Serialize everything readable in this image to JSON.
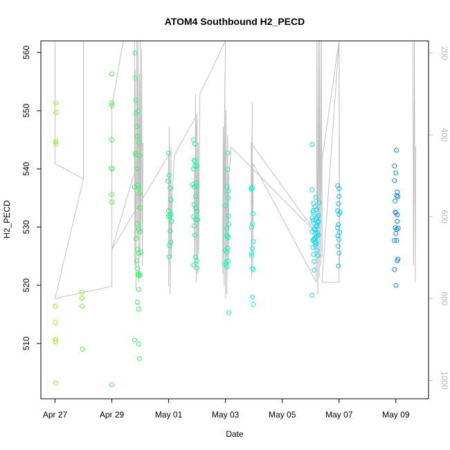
{
  "chart_data": {
    "type": "scatter",
    "title": "ATOM4 Southbound H2_PECD",
    "xlabel": "Date",
    "ylabel": "H2_PECD",
    "x_unit": "days since Apr 27 00:00",
    "xlim": [
      -0.5,
      13.15
    ],
    "ylim": [
      500.5,
      562
    ],
    "yticks": [
      510,
      520,
      530,
      540,
      550,
      560
    ],
    "xticks": [
      {
        "label": "Apr 27",
        "value": 0
      },
      {
        "label": "Apr 29",
        "value": 2
      },
      {
        "label": "May 01",
        "value": 4
      },
      {
        "label": "May 03",
        "value": 6
      },
      {
        "label": "May 05",
        "value": 8
      },
      {
        "label": "May 07",
        "value": 10
      },
      {
        "label": "May 09",
        "value": 12
      }
    ],
    "right_axis": {
      "color": "#b8b8b8",
      "ylim": [
        1045,
        170
      ],
      "ticks": [
        200,
        400,
        600,
        800,
        1000
      ]
    },
    "secondary_line": {
      "color": "#c0c0c0",
      "description": "grey trace on right axis scale",
      "points": [
        [
          0.0,
          130
        ],
        [
          0.0,
          470
        ],
        [
          1.0,
          508
        ],
        [
          1.0,
          130
        ],
        [
          1.0,
          508
        ],
        [
          0.0,
          800
        ],
        [
          2.0,
          770
        ],
        [
          2.0,
          330
        ],
        [
          2.4,
          130
        ],
        [
          2.8,
          130
        ],
        [
          2.8,
          340
        ],
        [
          2.81,
          720
        ],
        [
          2.82,
          240
        ],
        [
          2.85,
          780
        ],
        [
          2.88,
          150
        ],
        [
          2.9,
          650
        ],
        [
          2.92,
          130
        ],
        [
          2.95,
          760
        ],
        [
          2.97,
          250
        ],
        [
          2.99,
          700
        ],
        [
          3.0,
          130
        ],
        [
          3.02,
          640
        ],
        [
          3.05,
          190
        ],
        [
          3.07,
          720
        ],
        [
          3.1,
          420
        ],
        [
          2.0,
          680
        ],
        [
          4.0,
          450
        ],
        [
          4.0,
          770
        ],
        [
          4.02,
          380
        ],
        [
          4.05,
          790
        ],
        [
          4.08,
          430
        ],
        [
          4.1,
          700
        ],
        [
          4.12,
          560
        ],
        [
          4.2,
          450
        ],
        [
          5.0,
          350
        ],
        [
          4.9,
          520
        ],
        [
          4.92,
          720
        ],
        [
          4.95,
          300
        ],
        [
          4.97,
          760
        ],
        [
          5.0,
          360
        ],
        [
          5.02,
          740
        ],
        [
          5.04,
          420
        ],
        [
          5.06,
          690
        ],
        [
          5.1,
          300
        ],
        [
          6.0,
          130
        ],
        [
          5.9,
          740
        ],
        [
          5.92,
          380
        ],
        [
          5.95,
          770
        ],
        [
          5.98,
          250
        ],
        [
          6.0,
          800
        ],
        [
          6.02,
          340
        ],
        [
          6.05,
          790
        ],
        [
          6.08,
          400
        ],
        [
          6.1,
          730
        ],
        [
          6.12,
          500
        ],
        [
          6.2,
          430
        ],
        [
          9.2,
          640
        ],
        [
          6.9,
          420
        ],
        [
          6.92,
          750
        ],
        [
          6.94,
          320
        ],
        [
          6.96,
          720
        ],
        [
          6.98,
          470
        ],
        [
          9.2,
          760
        ],
        [
          9.22,
          130
        ],
        [
          9.25,
          790
        ],
        [
          9.28,
          130
        ],
        [
          9.3,
          750
        ],
        [
          9.32,
          130
        ],
        [
          9.35,
          720
        ],
        [
          9.38,
          130
        ],
        [
          9.4,
          700
        ],
        [
          9.4,
          460
        ],
        [
          10.0,
          130
        ],
        [
          9.4,
          760
        ],
        [
          10.0,
          760
        ],
        [
          10.0,
          130
        ],
        [
          10.02,
          720
        ],
        [
          10.0,
          130
        ],
        [
          11.6,
          130
        ],
        [
          12.6,
          130
        ],
        [
          12.62,
          720
        ],
        [
          12.65,
          130
        ],
        [
          12.68,
          760
        ],
        [
          12.7,
          430
        ]
      ]
    },
    "color_scale": [
      "#80ff00",
      "#00ff80",
      "#00ffff",
      "#0080ff"
    ],
    "points": [
      [
        0.03,
        551.3
      ],
      [
        0.03,
        549.7
      ],
      [
        0.03,
        544.7
      ],
      [
        0.03,
        544.3
      ],
      [
        0.02,
        516.4
      ],
      [
        0.02,
        513.6
      ],
      [
        0.02,
        510.7
      ],
      [
        0.02,
        510.3
      ],
      [
        0.02,
        503.2
      ],
      [
        0.95,
        518.8
      ],
      [
        0.95,
        517.8
      ],
      [
        0.95,
        516.4
      ],
      [
        0.97,
        509.0
      ],
      [
        2.0,
        556.3
      ],
      [
        2.0,
        551.3
      ],
      [
        2.0,
        550.9
      ],
      [
        2.0,
        545.0
      ],
      [
        2.0,
        540.1
      ],
      [
        2.0,
        540.0
      ],
      [
        2.0,
        535.6
      ],
      [
        2.0,
        534.3
      ],
      [
        2.0,
        502.9
      ],
      [
        2.82,
        559.9
      ],
      [
        2.84,
        555.6
      ],
      [
        2.85,
        551.8
      ],
      [
        2.86,
        549.5
      ],
      [
        2.88,
        547.3
      ],
      [
        2.9,
        545.6
      ],
      [
        2.82,
        542.7
      ],
      [
        2.85,
        542.4
      ],
      [
        2.88,
        540.0
      ],
      [
        2.8,
        536.9
      ],
      [
        2.9,
        537.2
      ],
      [
        2.95,
        536.7
      ],
      [
        2.97,
        535.8
      ],
      [
        3.0,
        533.3
      ],
      [
        2.9,
        530.6
      ],
      [
        2.95,
        529.6
      ],
      [
        3.0,
        529.2
      ],
      [
        2.85,
        528.0
      ],
      [
        2.9,
        526.2
      ],
      [
        2.95,
        525.5
      ],
      [
        2.88,
        524.2
      ],
      [
        2.9,
        522.9
      ],
      [
        2.92,
        521.8
      ],
      [
        2.94,
        522.0
      ],
      [
        2.96,
        521.6
      ],
      [
        3.0,
        521.8
      ],
      [
        2.95,
        519.3
      ],
      [
        2.9,
        517.1
      ],
      [
        2.95,
        515.9
      ],
      [
        2.8,
        510.6
      ],
      [
        2.95,
        509.9
      ],
      [
        2.97,
        507.4
      ],
      [
        2.92,
        549.9
      ],
      [
        2.95,
        544.6
      ],
      [
        2.98,
        542.3
      ],
      [
        3.02,
        525.6
      ],
      [
        4.0,
        542.7
      ],
      [
        4.02,
        538.9
      ],
      [
        3.98,
        537.9
      ],
      [
        4.05,
        536.7
      ],
      [
        4.08,
        534.7
      ],
      [
        4.0,
        532.8
      ],
      [
        4.05,
        532.0
      ],
      [
        4.1,
        531.0
      ],
      [
        4.05,
        529.3
      ],
      [
        4.07,
        527.4
      ],
      [
        4.03,
        526.8
      ],
      [
        4.02,
        524.9
      ],
      [
        4.0,
        531.8
      ],
      [
        4.08,
        532.3
      ],
      [
        4.88,
        545.0
      ],
      [
        4.92,
        544.3
      ],
      [
        4.9,
        541.5
      ],
      [
        4.93,
        540.5
      ],
      [
        4.88,
        540.0
      ],
      [
        5.0,
        540.5
      ],
      [
        4.85,
        537.3
      ],
      [
        4.9,
        536.9
      ],
      [
        5.0,
        537.0
      ],
      [
        4.95,
        535.3
      ],
      [
        4.9,
        533.9
      ],
      [
        4.95,
        533.3
      ],
      [
        5.0,
        532.7
      ],
      [
        4.88,
        531.8
      ],
      [
        4.95,
        531.3
      ],
      [
        5.02,
        531.3
      ],
      [
        4.9,
        530.2
      ],
      [
        4.92,
        528.6
      ],
      [
        4.95,
        524.9
      ],
      [
        5.0,
        524.2
      ],
      [
        4.88,
        523.5
      ],
      [
        5.0,
        522.9
      ],
      [
        4.92,
        541.3
      ],
      [
        4.98,
        537.6
      ],
      [
        6.08,
        542.7
      ],
      [
        6.08,
        539.9
      ],
      [
        6.05,
        537.0
      ],
      [
        6.1,
        536.2
      ],
      [
        6.1,
        535.0
      ],
      [
        6.0,
        533.7
      ],
      [
        6.1,
        531.9
      ],
      [
        6.05,
        529.8
      ],
      [
        6.05,
        528.6
      ],
      [
        6.1,
        528.2
      ],
      [
        6.0,
        526.0
      ],
      [
        6.05,
        525.7
      ],
      [
        6.08,
        526.4
      ],
      [
        6.02,
        524.0
      ],
      [
        6.0,
        523.6
      ],
      [
        6.05,
        523.2
      ],
      [
        6.1,
        524.2
      ],
      [
        6.12,
        515.3
      ],
      [
        6.07,
        528.4
      ],
      [
        6.12,
        530.5
      ],
      [
        6.95,
        536.8
      ],
      [
        6.92,
        536.5
      ],
      [
        6.97,
        532.3
      ],
      [
        6.95,
        530.5
      ],
      [
        6.92,
        530.0
      ],
      [
        6.98,
        527.5
      ],
      [
        6.95,
        526.3
      ],
      [
        6.92,
        525.1
      ],
      [
        6.95,
        522.9
      ],
      [
        6.98,
        522.7
      ],
      [
        6.95,
        518.0
      ],
      [
        6.98,
        516.7
      ],
      [
        6.9,
        536.6
      ],
      [
        6.92,
        525.5
      ],
      [
        9.05,
        544.2
      ],
      [
        9.05,
        536.4
      ],
      [
        9.1,
        534.1
      ],
      [
        9.08,
        532.8
      ],
      [
        9.05,
        531.6
      ],
      [
        9.1,
        530.7
      ],
      [
        9.12,
        529.6
      ],
      [
        9.05,
        529.2
      ],
      [
        9.07,
        527.7
      ],
      [
        9.08,
        526.5
      ],
      [
        9.1,
        525.3
      ],
      [
        9.12,
        524.1
      ],
      [
        9.05,
        518.3
      ],
      [
        9.15,
        533.5
      ],
      [
        9.18,
        535.1
      ],
      [
        9.2,
        531.4
      ],
      [
        9.22,
        530.2
      ],
      [
        9.18,
        528.9
      ],
      [
        9.15,
        527.9
      ],
      [
        9.2,
        527.2
      ],
      [
        9.22,
        526.0
      ],
      [
        9.25,
        525.1
      ],
      [
        9.28,
        531.0
      ],
      [
        9.3,
        534.2
      ],
      [
        9.12,
        522.6
      ],
      [
        9.15,
        529.7
      ],
      [
        9.2,
        528.4
      ],
      [
        9.22,
        531.7
      ],
      [
        9.25,
        530.8
      ],
      [
        9.1,
        532.5
      ],
      [
        9.13,
        528.1
      ],
      [
        9.17,
        526.9
      ],
      [
        9.27,
        532.0
      ],
      [
        9.16,
        527.3
      ],
      [
        9.19,
        530.1
      ],
      [
        9.21,
        533.0
      ],
      [
        9.08,
        531.2
      ],
      [
        9.24,
        529.0
      ],
      [
        9.11,
        527.8
      ],
      [
        9.26,
        528.6
      ],
      [
        9.95,
        537.1
      ],
      [
        10.0,
        536.6
      ],
      [
        10.0,
        535.3
      ],
      [
        9.98,
        534.0
      ],
      [
        9.95,
        532.8
      ],
      [
        10.0,
        532.2
      ],
      [
        9.98,
        530.4
      ],
      [
        9.95,
        529.9
      ],
      [
        10.02,
        529.1
      ],
      [
        10.0,
        527.9
      ],
      [
        9.97,
        526.7
      ],
      [
        10.0,
        525.5
      ],
      [
        9.98,
        523.3
      ],
      [
        10.03,
        532.6
      ],
      [
        9.96,
        528.5
      ],
      [
        11.95,
        540.5
      ],
      [
        12.0,
        539.3
      ],
      [
        11.95,
        538.0
      ],
      [
        12.05,
        536.0
      ],
      [
        12.03,
        535.4
      ],
      [
        12.07,
        535.2
      ],
      [
        11.98,
        532.6
      ],
      [
        12.0,
        532.4
      ],
      [
        12.05,
        531.0
      ],
      [
        11.98,
        529.9
      ],
      [
        12.03,
        529.6
      ],
      [
        12.08,
        529.8
      ],
      [
        12.0,
        528.9
      ],
      [
        12.03,
        527.7
      ],
      [
        11.95,
        527.7
      ],
      [
        12.07,
        524.5
      ],
      [
        12.05,
        524.2
      ],
      [
        11.95,
        522.7
      ],
      [
        12.0,
        520.0
      ],
      [
        12.02,
        543.2
      ],
      [
        12.05,
        532.1
      ],
      [
        11.97,
        534.5
      ]
    ]
  }
}
